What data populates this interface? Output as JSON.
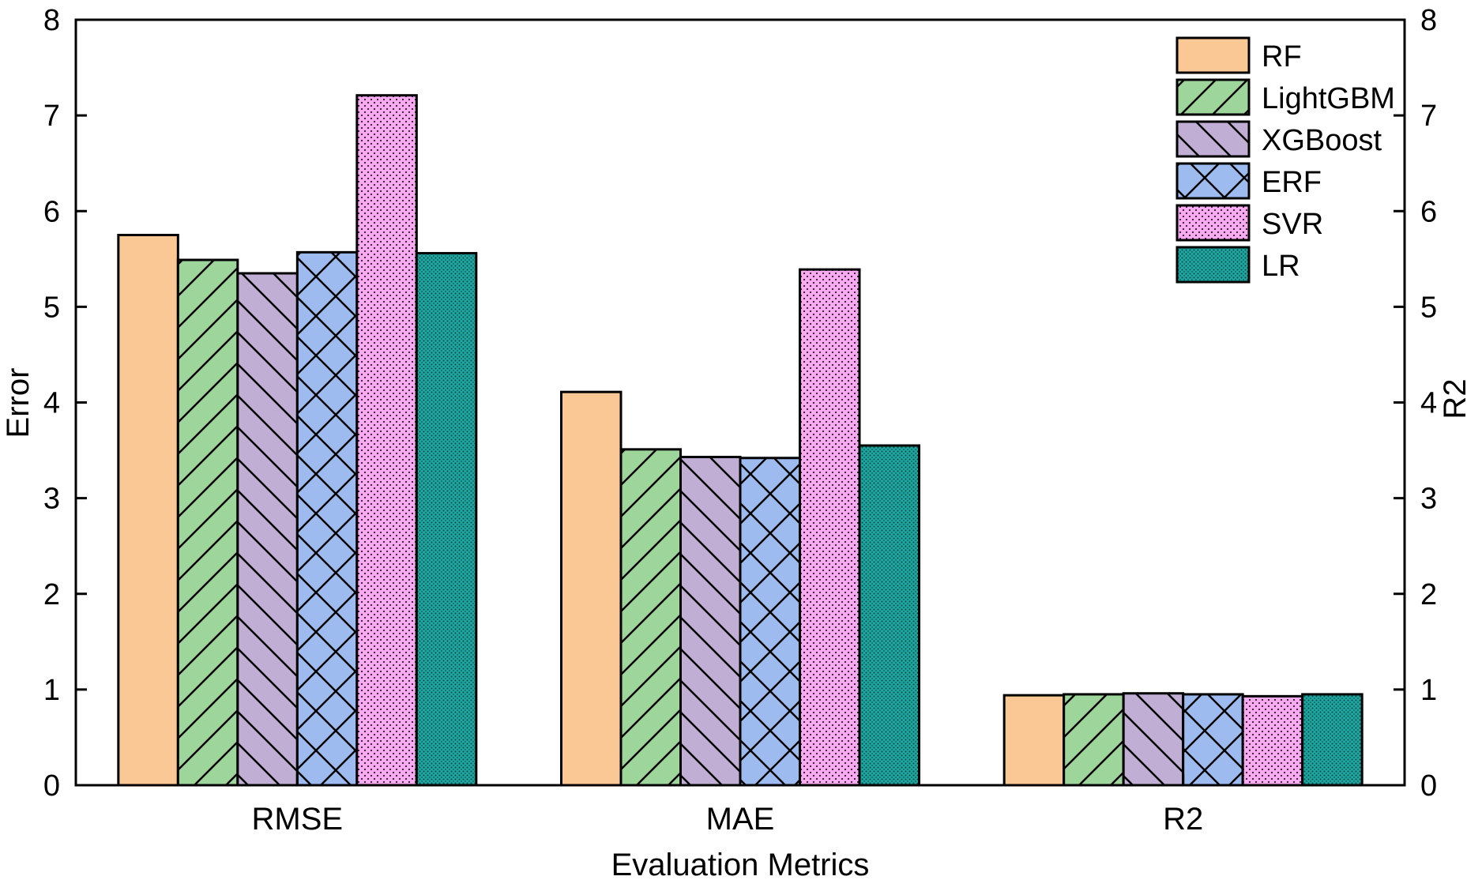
{
  "chart_data": {
    "type": "bar",
    "title": "",
    "xlabel": "Evaluation Metrics",
    "ylabel": "Error",
    "y2label": "R2",
    "ylim": [
      0,
      8
    ],
    "y2lim": [
      0,
      8
    ],
    "yticks": [
      "0",
      "1",
      "2",
      "3",
      "4",
      "5",
      "6",
      "7",
      "8"
    ],
    "y2ticks": [
      "0",
      "1",
      "2",
      "3",
      "4",
      "5",
      "6",
      "7",
      "8"
    ],
    "categories": [
      "RMSE",
      "MAE",
      "R2"
    ],
    "legend_position": "top-right",
    "series": [
      {
        "name": "RF",
        "color": "#f9c894",
        "pattern": "solid",
        "values": [
          5.75,
          4.11,
          0.94
        ]
      },
      {
        "name": "LightGBM",
        "color": "#9ed59b",
        "pattern": "diagonal-forward",
        "values": [
          5.49,
          3.51,
          0.95
        ]
      },
      {
        "name": "XGBoost",
        "color": "#c0aed4",
        "pattern": "diagonal-back",
        "values": [
          5.35,
          3.43,
          0.96
        ]
      },
      {
        "name": "ERF",
        "color": "#9dbbef",
        "pattern": "crosshatch",
        "values": [
          5.57,
          3.42,
          0.95
        ]
      },
      {
        "name": "SVR",
        "color": "#f8aaf0",
        "pattern": "dots",
        "values": [
          7.21,
          5.39,
          0.93
        ]
      },
      {
        "name": "LR",
        "color": "#1fa6a0",
        "pattern": "dense-dots",
        "values": [
          5.56,
          3.55,
          0.95
        ]
      }
    ]
  }
}
